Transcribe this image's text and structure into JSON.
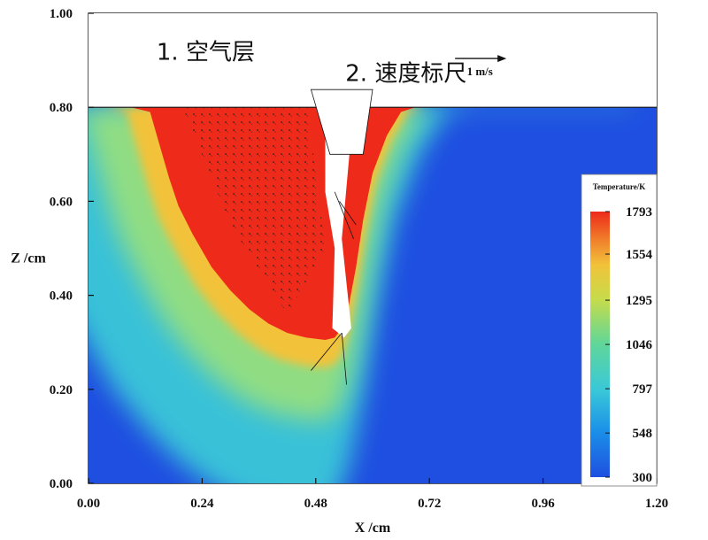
{
  "chart_data": {
    "type": "heatmap",
    "xlabel": "X /cm",
    "ylabel": "Z /cm",
    "xlim": [
      0.0,
      1.2
    ],
    "ylim": [
      0.0,
      1.0
    ],
    "x_ticks": [
      "0.00",
      "0.24",
      "0.48",
      "0.72",
      "0.96",
      "1.20"
    ],
    "x_tick_values": [
      0.0,
      0.24,
      0.48,
      0.72,
      0.96,
      1.2
    ],
    "y_ticks": [
      "0.00",
      "0.20",
      "0.40",
      "0.60",
      "0.80",
      "1.00"
    ],
    "y_tick_values": [
      0.0,
      0.2,
      0.4,
      0.6,
      0.8,
      1.0
    ],
    "surface_z": 0.8,
    "colorbar": {
      "title": "Temperature/K",
      "ticks": [
        "1793",
        "1554",
        "1295",
        "1046",
        "797",
        "548",
        "300"
      ],
      "tick_values": [
        1793,
        1554,
        1295,
        1046,
        797,
        548,
        300
      ],
      "range": [
        300,
        1793
      ],
      "colors": [
        "#1f4fe0",
        "#1a8fe8",
        "#3ac8d8",
        "#5fd69a",
        "#c6dc4a",
        "#f2c23a",
        "#f07a2a",
        "#ee2a1a"
      ]
    },
    "annotations": [
      {
        "text": "1. 空气层",
        "x": 0.14,
        "z": 0.92
      },
      {
        "text": "2. 速度标尺",
        "x": 0.55,
        "z": 0.875
      }
    ],
    "velocity_scale": {
      "label": "1 m/s",
      "x": 0.92,
      "z": 0.885
    },
    "keyhole_outline_x": [
      0.09,
      0.13,
      0.15,
      0.17,
      0.19,
      0.22,
      0.26,
      0.3,
      0.34,
      0.38,
      0.42,
      0.46,
      0.5,
      0.52,
      0.535,
      0.55,
      0.565,
      0.58,
      0.6,
      0.63,
      0.66,
      0.69,
      0.72
    ],
    "keyhole_outline_z": [
      0.8,
      0.79,
      0.72,
      0.65,
      0.59,
      0.53,
      0.46,
      0.41,
      0.37,
      0.34,
      0.32,
      0.31,
      0.305,
      0.31,
      0.33,
      0.38,
      0.46,
      0.56,
      0.66,
      0.74,
      0.79,
      0.8,
      0.8
    ]
  },
  "icons": {
    "arrow": "right-arrow-icon"
  }
}
